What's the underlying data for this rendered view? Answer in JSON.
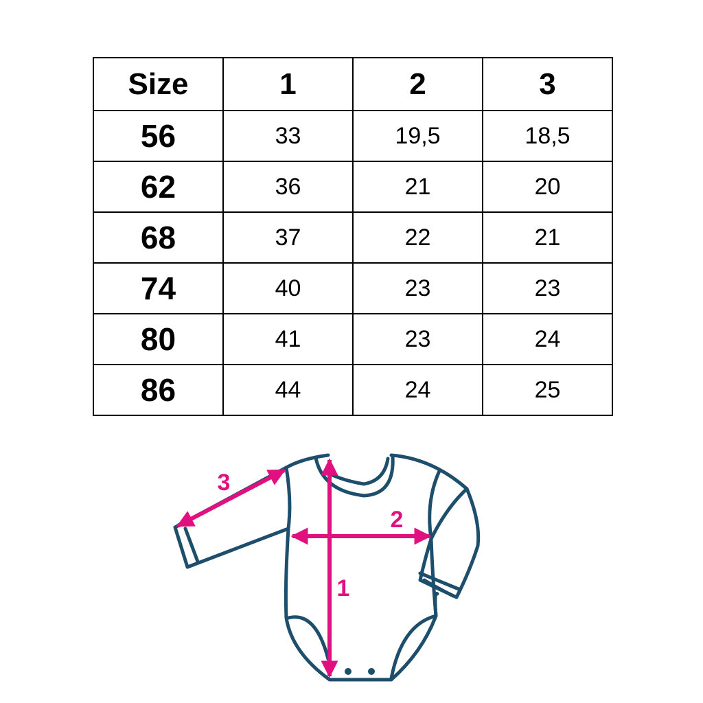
{
  "table": {
    "headers": [
      "Size",
      "1",
      "2",
      "3"
    ],
    "rows": [
      [
        "56",
        "33",
        "19,5",
        "18,5"
      ],
      [
        "62",
        "36",
        "21",
        "20"
      ],
      [
        "68",
        "37",
        "22",
        "21"
      ],
      [
        "74",
        "40",
        "23",
        "23"
      ],
      [
        "80",
        "41",
        "23",
        "24"
      ],
      [
        "86",
        "44",
        "24",
        "25"
      ]
    ]
  },
  "diagram": {
    "labels": {
      "length": "1",
      "chest": "2",
      "sleeve": "3"
    },
    "colors": {
      "outline": "#1d4e6b",
      "arrows": "#e0107f"
    }
  }
}
